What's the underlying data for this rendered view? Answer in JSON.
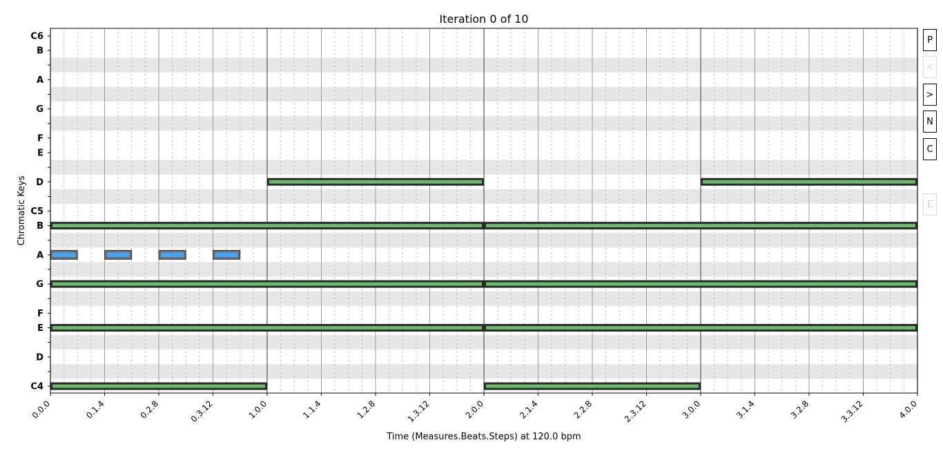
{
  "chart_data": {
    "type": "piano-roll",
    "title": "Iteration 0 of 10",
    "xlabel": "Time (Measures.Beats.Steps) at 120.0 bpm",
    "ylabel": "Chromatic Keys",
    "xlim": [
      0,
      4
    ],
    "x_ticks": [
      "0.0.0",
      "0.1.4",
      "0.2.8",
      "0.3.12",
      "1.0.0",
      "1.1.4",
      "1.2.8",
      "1.3.12",
      "2.0.0",
      "2.1.4",
      "2.2.8",
      "2.3.12",
      "3.0.0",
      "3.1.4",
      "3.2.8",
      "3.3.12",
      "4.0.0"
    ],
    "pitch_range": [
      "C4",
      "C6"
    ],
    "y_tick_labels": [
      {
        "pitch": "C4",
        "label": "C4"
      },
      {
        "pitch": "D4",
        "label": "D"
      },
      {
        "pitch": "E4",
        "label": "E"
      },
      {
        "pitch": "F4",
        "label": "F"
      },
      {
        "pitch": "G4",
        "label": "G"
      },
      {
        "pitch": "A4",
        "label": "A"
      },
      {
        "pitch": "B4",
        "label": "B"
      },
      {
        "pitch": "C5",
        "label": "C5"
      },
      {
        "pitch": "D5",
        "label": "D"
      },
      {
        "pitch": "E5",
        "label": "E"
      },
      {
        "pitch": "F5",
        "label": "F"
      },
      {
        "pitch": "G5",
        "label": "G"
      },
      {
        "pitch": "A5",
        "label": "A"
      },
      {
        "pitch": "B5",
        "label": "B"
      },
      {
        "pitch": "C6",
        "label": "C6"
      }
    ],
    "colors": {
      "chord_note": "#6cbb6c",
      "melody_note": "#4aa3ef",
      "note_border": "#2a2a2a"
    },
    "series": [
      {
        "role": "chord",
        "notes": [
          {
            "pitch": "C4",
            "start": 0,
            "end": 1
          },
          {
            "pitch": "C4",
            "start": 2,
            "end": 3
          },
          {
            "pitch": "E4",
            "start": 0,
            "end": 2
          },
          {
            "pitch": "E4",
            "start": 2,
            "end": 4
          },
          {
            "pitch": "G4",
            "start": 0,
            "end": 2
          },
          {
            "pitch": "G4",
            "start": 2,
            "end": 4
          },
          {
            "pitch": "B4",
            "start": 0,
            "end": 2
          },
          {
            "pitch": "B4",
            "start": 2,
            "end": 4
          },
          {
            "pitch": "D5",
            "start": 1,
            "end": 2
          },
          {
            "pitch": "D5",
            "start": 3,
            "end": 4
          }
        ]
      },
      {
        "role": "melody",
        "notes": [
          {
            "pitch": "A4",
            "start": 0,
            "end": 0.125
          },
          {
            "pitch": "A4",
            "start": 0.25,
            "end": 0.375
          },
          {
            "pitch": "A4",
            "start": 0.5,
            "end": 0.625
          },
          {
            "pitch": "A4",
            "start": 0.75,
            "end": 0.875
          }
        ]
      }
    ]
  },
  "side_buttons": [
    {
      "key": "play",
      "label": "P",
      "enabled": true
    },
    {
      "key": "prev",
      "label": "<",
      "enabled": false
    },
    {
      "key": "next",
      "label": ">",
      "enabled": true
    },
    {
      "key": "new",
      "label": "N",
      "enabled": true
    },
    {
      "key": "clear",
      "label": "C",
      "enabled": true
    },
    {
      "key": "export",
      "label": "E",
      "enabled": false
    }
  ]
}
